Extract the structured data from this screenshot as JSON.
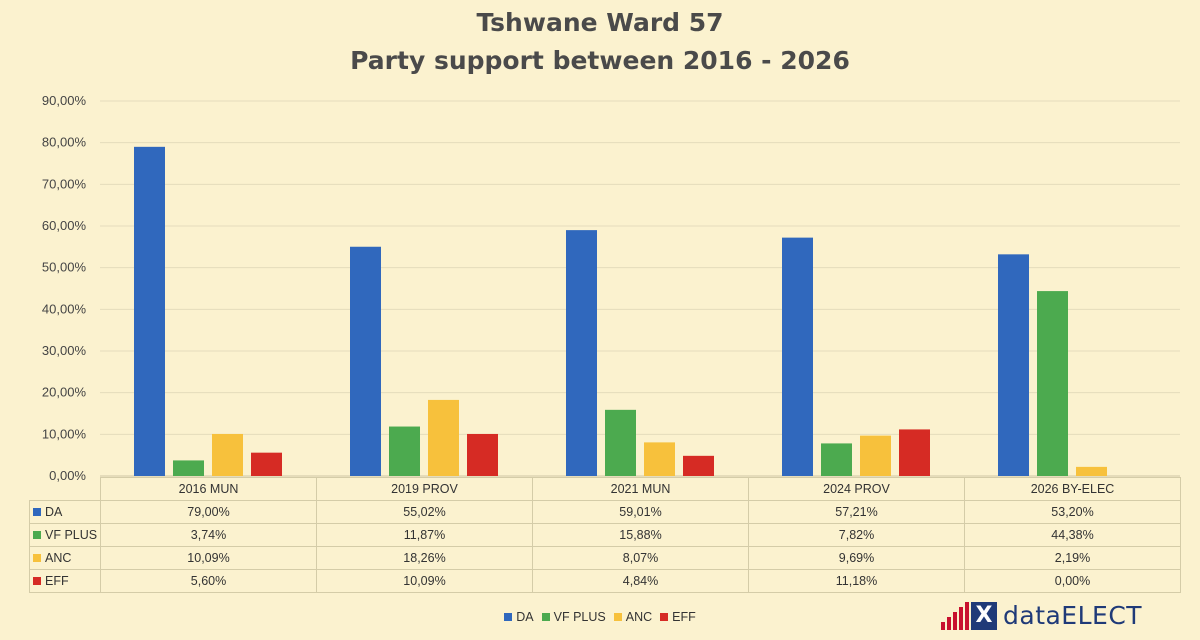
{
  "chart_data": {
    "type": "bar",
    "title": "Tshwane Ward 57",
    "subtitle": "Party support between 2016 - 2026",
    "categories": [
      "2016 MUN",
      "2019 PROV",
      "2021 MUN",
      "2024 PROV",
      "2026 BY-ELEC"
    ],
    "series": [
      {
        "name": "DA",
        "color": "#3068bd",
        "values": [
          79.0,
          55.02,
          59.01,
          57.21,
          53.2
        ],
        "labels": [
          "79,00%",
          "55,02%",
          "59,01%",
          "57,21%",
          "53,20%"
        ]
      },
      {
        "name": "VF PLUS",
        "color": "#4caa4f",
        "values": [
          3.74,
          11.87,
          15.88,
          7.82,
          44.38
        ],
        "labels": [
          "3,74%",
          "11,87%",
          "15,88%",
          "7,82%",
          "44,38%"
        ]
      },
      {
        "name": "ANC",
        "color": "#f7c13c",
        "values": [
          10.09,
          18.26,
          8.07,
          9.69,
          2.19
        ],
        "labels": [
          "10,09%",
          "18,26%",
          "8,07%",
          "9,69%",
          "2,19%"
        ]
      },
      {
        "name": "EFF",
        "color": "#d62b24",
        "values": [
          5.6,
          10.09,
          4.84,
          11.18,
          0.0
        ],
        "labels": [
          "5,60%",
          "10,09%",
          "4,84%",
          "11,18%",
          "0,00%"
        ]
      }
    ],
    "ylim": [
      0,
      90
    ],
    "yticks": [
      "0,00%",
      "10,00%",
      "20,00%",
      "30,00%",
      "40,00%",
      "50,00%",
      "60,00%",
      "70,00%",
      "80,00%",
      "90,00%"
    ],
    "grid": true,
    "legend_position": "bottom",
    "data_table": true
  },
  "logo": {
    "mark": "X",
    "name": "dataELECT"
  }
}
